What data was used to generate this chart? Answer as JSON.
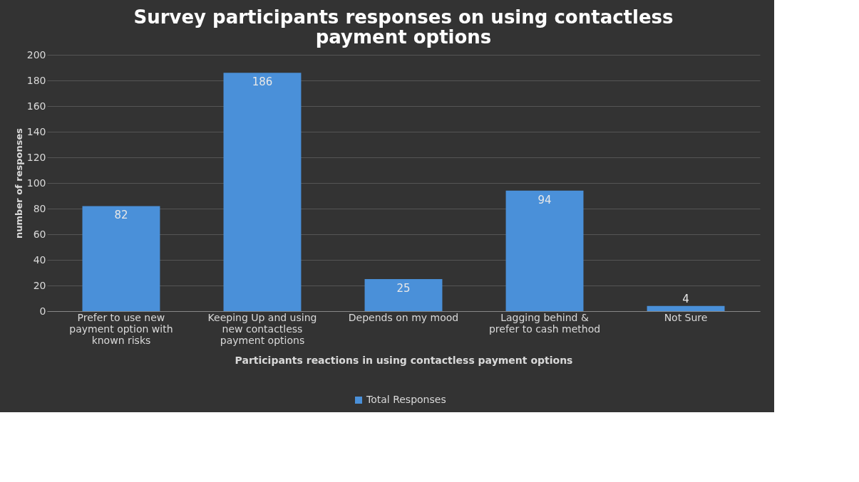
{
  "chart_data": {
    "type": "bar",
    "title": "Survey participants responses on using contactless payment options",
    "xlabel": "Participants reactions in using contactless payment options",
    "ylabel": "number of responses",
    "categories": [
      "Prefer to use new payment option with known risks",
      "Keeping Up and using new contactless payment options",
      "Depends on my mood",
      "Lagging behind & prefer to cash method",
      "Not Sure"
    ],
    "series": [
      {
        "name": "Total Responses",
        "color": "#4a90d9",
        "values": [
          82,
          186,
          25,
          94,
          4
        ]
      }
    ],
    "ylim": [
      0,
      200
    ],
    "yticks": [
      0,
      20,
      40,
      60,
      80,
      100,
      120,
      140,
      160,
      180,
      200
    ],
    "grid": "y",
    "legend": "bottom",
    "data_labels": true
  }
}
